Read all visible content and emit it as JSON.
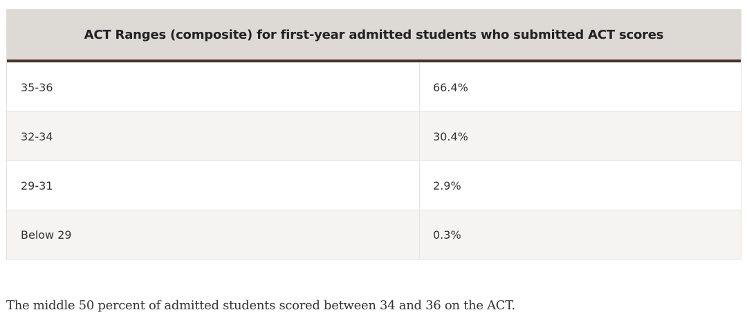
{
  "table": {
    "header": "ACT Ranges (composite) for first-year admitted students who submitted ACT scores",
    "rows": [
      {
        "range": "35-36",
        "percent": "66.4%"
      },
      {
        "range": "32-34",
        "percent": "30.4%"
      },
      {
        "range": "29-31",
        "percent": "2.9%"
      },
      {
        "range": "Below 29",
        "percent": "0.3%"
      }
    ]
  },
  "footnote": "The middle 50 percent of admitted students scored between 34 and 36 on the ACT.",
  "colors": {
    "header_bg": "#ddd9d5",
    "header_rule": "#4b3328",
    "alt_row_bg": "#f5f4f3"
  }
}
